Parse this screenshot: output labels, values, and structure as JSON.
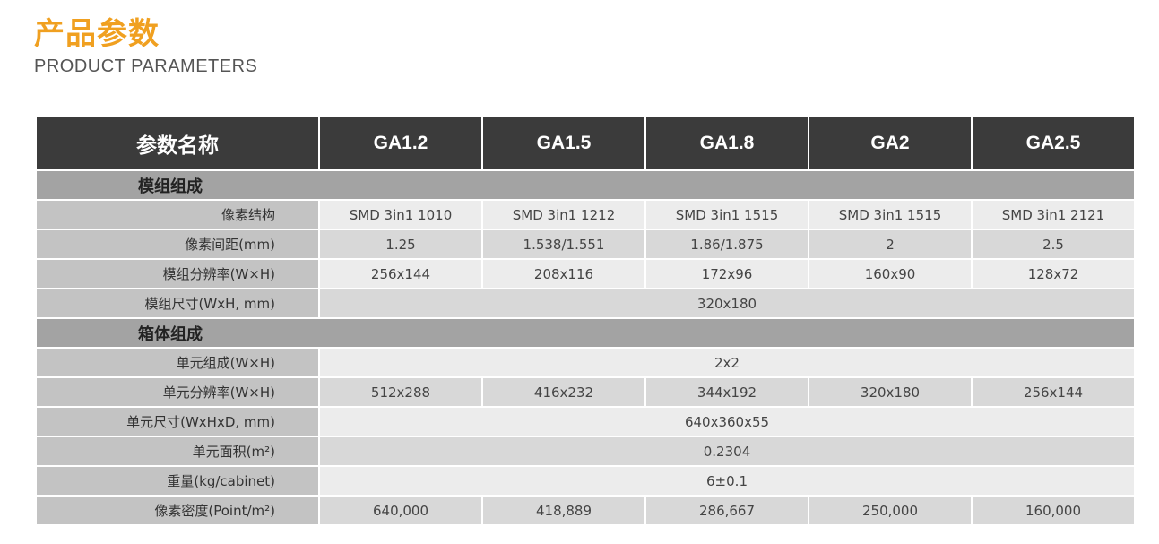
{
  "title": "产品参数",
  "subtitle": "PRODUCT PARAMETERS",
  "colors": {
    "accent": "#f0a020",
    "header_bg": "#3b3b3b",
    "section_bg": "#a3a3a3",
    "label_bg": "#c3c3c3"
  },
  "table": {
    "header": [
      "参数名称",
      "GA1.2",
      "GA1.5",
      "GA1.8",
      "GA2",
      "GA2.5"
    ],
    "rows": [
      {
        "section": "模组组成"
      },
      {
        "label": "像素结构",
        "values": [
          "SMD 3in1 1010",
          "SMD 3in1 1212",
          "SMD 3in1 1515",
          "SMD 3in1 1515",
          "SMD 3in1 2121"
        ]
      },
      {
        "label": "像素间距(mm)",
        "values": [
          "1.25",
          "1.538/1.551",
          "1.86/1.875",
          "2",
          "2.5"
        ]
      },
      {
        "label": "模组分辨率(W×H)",
        "values": [
          "256x144",
          "208x116",
          "172x96",
          "160x90",
          "128x72"
        ]
      },
      {
        "label": "模组尺寸(WxH, mm)",
        "values": [
          "320x180"
        ]
      },
      {
        "section": "箱体组成"
      },
      {
        "label": "单元组成(W×H)",
        "values": [
          "2x2"
        ]
      },
      {
        "label": "单元分辨率(W×H)",
        "values": [
          "512x288",
          "416x232",
          "344x192",
          "320x180",
          "256x144"
        ]
      },
      {
        "label": "单元尺寸(WxHxD, mm)",
        "values": [
          "640x360x55"
        ]
      },
      {
        "label": "单元面积(m²)",
        "values": [
          "0.2304"
        ]
      },
      {
        "label": "重量(kg/cabinet)",
        "values": [
          "6±0.1"
        ]
      },
      {
        "label": "像素密度(Point/m²)",
        "values": [
          "640,000",
          "418,889",
          "286,667",
          "250,000",
          "160,000"
        ]
      }
    ]
  }
}
